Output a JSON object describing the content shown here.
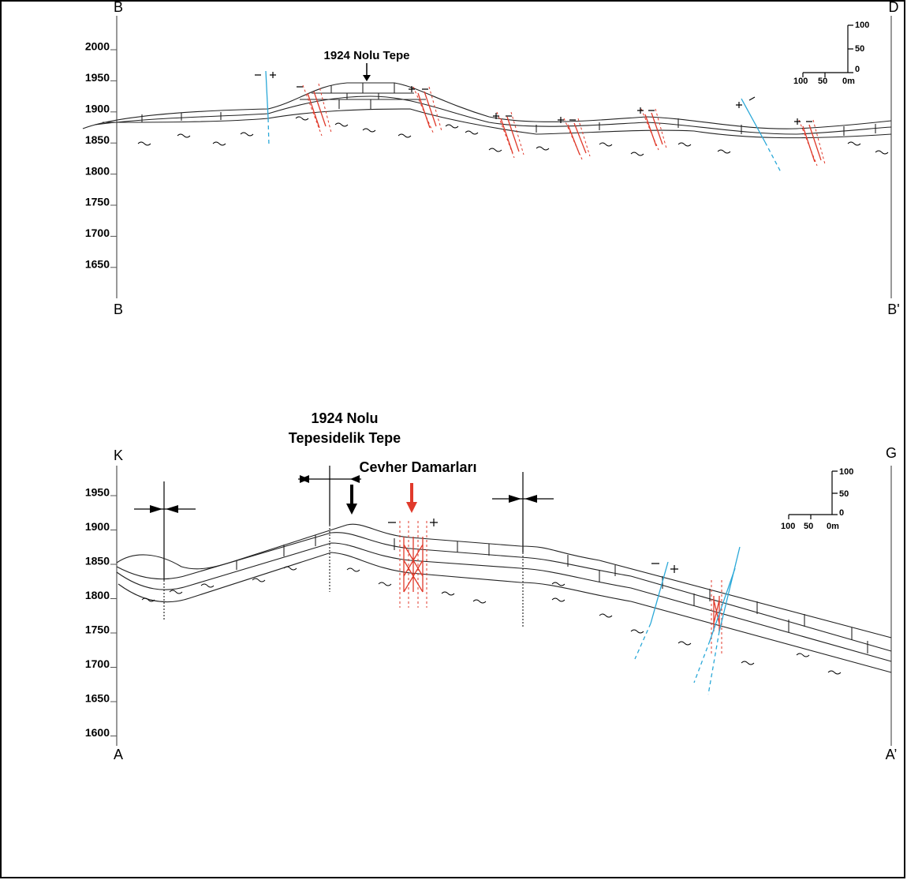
{
  "sections": [
    {
      "corner_top_left": "B",
      "corner_top_right": "D",
      "corner_bottom_left": "B",
      "corner_bottom_right": "B'",
      "elevation_ticks": [
        2000,
        1950,
        1900,
        1850,
        1800,
        1750,
        1700,
        1650
      ],
      "annotations": [
        "1924 Nolu Tepe"
      ],
      "scale_vertical": [
        "100",
        "50",
        "0"
      ],
      "scale_horizontal": [
        "100",
        "50",
        "0m"
      ]
    },
    {
      "corner_top_left": "K",
      "corner_top_right": "G",
      "corner_bottom_left": "A",
      "corner_bottom_right": "A’",
      "elevation_ticks": [
        1950,
        1900,
        1850,
        1800,
        1750,
        1700,
        1650,
        1600
      ],
      "annotations": [
        "1924 Nolu",
        "Tepesidelik Tepe",
        "Cevher Damarları"
      ],
      "scale_vertical": [
        "100",
        "50",
        "0"
      ],
      "scale_horizontal": [
        "100",
        "50",
        "0m"
      ]
    }
  ]
}
